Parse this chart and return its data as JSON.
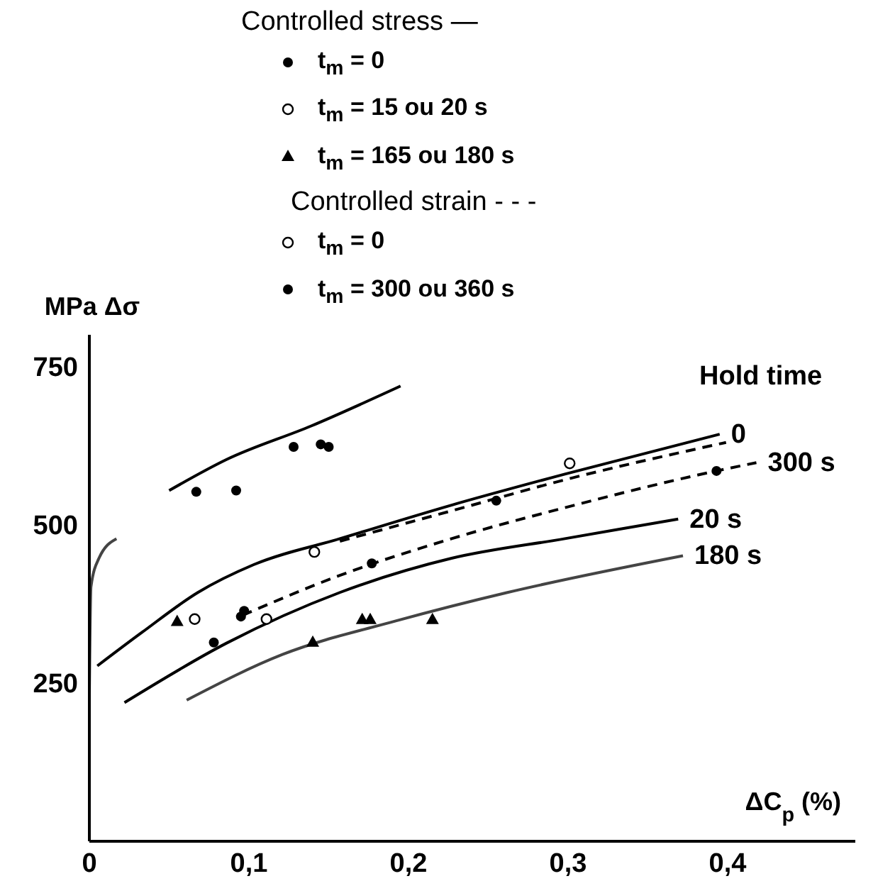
{
  "chart_data": {
    "type": "line",
    "xlabel": "ΔC$_{p}$ (%)",
    "ylabel": "MPa Δσ",
    "annotations": [
      "Controlled stress —",
      "Controlled strain - - -",
      "Hold time"
    ],
    "xlim": [
      0,
      0.48
    ],
    "xticks": [
      0,
      {
        "value": 0.1,
        "label": "0,1"
      },
      {
        "value": 0.2,
        "label": "0,2"
      },
      {
        "value": 0.3,
        "label": "0,3"
      },
      {
        "value": 0.4,
        "label": "0,4"
      }
    ],
    "ylim": [
      0,
      800
    ],
    "yticks": [
      250,
      500,
      750
    ],
    "grid": false,
    "legend": "top",
    "series": [
      {
        "name": "t$_{m}$ = 0",
        "type": "scatter",
        "marker": "circle",
        "color": "#000000",
        "x": [
          0.067,
          0.092,
          0.128,
          0.145,
          0.15
        ],
        "values": [
          552,
          554,
          623,
          627,
          623
        ]
      },
      {
        "name": "t$_{m}$ =  15 ou 20 s",
        "type": "scatter",
        "marker": "open circle",
        "color": "#000000",
        "x": [
          0.111
        ],
        "values": [
          351
        ]
      },
      {
        "name": "t$_{m}$ = 165 ou 180 s",
        "type": "scatter",
        "marker": "triangle",
        "color": "#000000",
        "x": [
          0.055,
          0.14,
          0.171,
          0.176,
          0.215
        ],
        "values": [
          348,
          315,
          351,
          351,
          351
        ]
      },
      {
        "name": "t$_{m}$ = 0",
        "type": "scatter",
        "marker": "open circle",
        "color": "#000000",
        "x": [
          0.066,
          0.141,
          0.301
        ],
        "values": [
          351,
          457,
          597
        ]
      },
      {
        "name": "t$_{m}$ = 300 ou 360 s",
        "type": "scatter",
        "marker": "circle",
        "color": "#000000",
        "x": [
          0.078,
          0.095,
          0.097,
          0.177,
          0.255,
          0.393
        ],
        "values": [
          314,
          355,
          364,
          439,
          538,
          585
        ]
      },
      {
        "line_style": "solid",
        "color": "#000000",
        "x": [
          0.05,
          0.086,
          0.139,
          0.195
        ],
        "values": [
          554,
          603,
          656,
          719
        ]
      },
      {
        "line_style": "solid",
        "color": "#444444",
        "x": [
          0,
          0.001,
          0.006,
          0.017
        ],
        "values": [
          232,
          402,
          447,
          478
        ]
      },
      {
        "name": "0",
        "line_style": "solid",
        "color": "#000000",
        "x": [
          0.005,
          0.033,
          0.068,
          0.103,
          0.157,
          0.227,
          0.298,
          0.395
        ],
        "values": [
          277,
          330,
          393,
          437,
          478,
          531,
          580,
          643
        ]
      },
      {
        "line_style": "dashed",
        "color": "#000000",
        "x": [
          0.157,
          0.227,
          0.298,
          0.399
        ],
        "values": [
          474,
          522,
          571,
          630
        ]
      },
      {
        "name": "300 s",
        "line_style": "dashed",
        "color": "#000000",
        "x": [
          0.096,
          0.157,
          0.227,
          0.298,
          0.393,
          0.418
        ],
        "values": [
          357,
          420,
          478,
          527,
          585,
          598
        ]
      },
      {
        "name": "20 s",
        "line_style": "solid",
        "color": "#000000",
        "x": [
          0.022,
          0.086,
          0.157,
          0.227,
          0.298,
          0.369
        ],
        "values": [
          219,
          313,
          393,
          447,
          478,
          509
        ]
      },
      {
        "name": "180 s",
        "line_style": "solid",
        "color": "#444444",
        "x": [
          0.061,
          0.121,
          0.192,
          0.262,
          0.372
        ],
        "values": [
          223,
          295,
          348,
          393,
          451
        ]
      }
    ]
  }
}
